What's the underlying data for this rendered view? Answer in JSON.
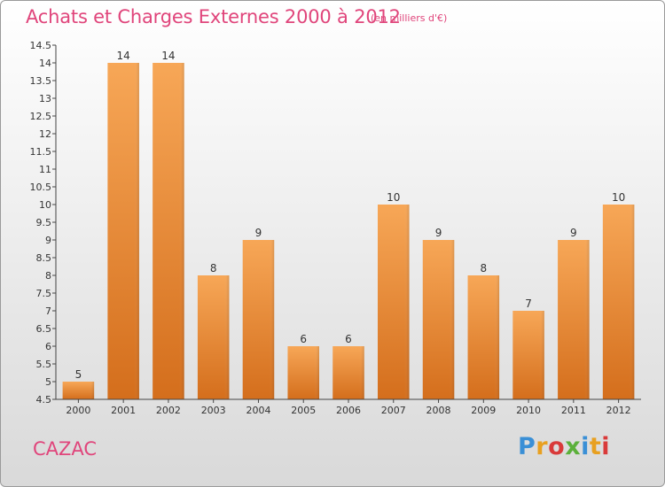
{
  "header": {
    "title": "Achats et Charges Externes 2000 à 2012",
    "unit": "(en milliers d'€)"
  },
  "footer": {
    "city": "CAZAC",
    "logo": "Proxiti",
    "logo_colors": [
      "#3a8fd6",
      "#e8a020",
      "#d93a3a",
      "#5bb03a",
      "#3a8fd6",
      "#e8a020",
      "#d93a3a"
    ]
  },
  "chart_data": {
    "type": "bar",
    "categories": [
      "2000",
      "2001",
      "2002",
      "2003",
      "2004",
      "2005",
      "2006",
      "2007",
      "2008",
      "2009",
      "2010",
      "2011",
      "2012"
    ],
    "values": [
      5,
      14,
      14,
      8,
      9,
      6,
      6,
      10,
      9,
      8,
      7,
      9,
      10
    ],
    "value_labels": [
      "5",
      "14",
      "14",
      "8",
      "9",
      "6",
      "6",
      "10",
      "9",
      "8",
      "7",
      "9",
      "10"
    ],
    "ylim": [
      4.5,
      14.5
    ],
    "yticks": [
      "4.5",
      "5",
      "5.5",
      "6",
      "6.5",
      "7",
      "7.5",
      "8",
      "8.5",
      "9",
      "9.5",
      "10",
      "10.5",
      "11",
      "11.5",
      "12",
      "12.5",
      "13",
      "13.5",
      "14",
      "14.5"
    ],
    "bar_color_top": "#f7a757",
    "bar_color_bottom": "#d46e1c",
    "grid": false
  }
}
